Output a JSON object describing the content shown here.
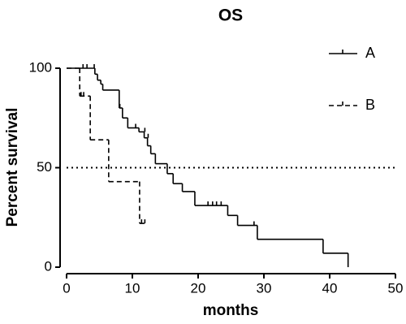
{
  "chart_data": {
    "type": "step",
    "title": "OS",
    "x_label": "months",
    "y_label": "Percent survival",
    "xlim": [
      0,
      50
    ],
    "xticks": [
      0,
      10,
      20,
      30,
      40,
      50
    ],
    "ylim": [
      0,
      100
    ],
    "yticks": [
      0,
      50,
      100
    ],
    "reference_line": 50,
    "legend": "top-right",
    "series": [
      {
        "name": "A",
        "color": "#000000",
        "line_style": "solid",
        "x": [
          0,
          4.3,
          4.7,
          5.2,
          5.5,
          8.0,
          8.5,
          9.3,
          11.0,
          11.8,
          12.3,
          12.8,
          13.5,
          15.3,
          16.2,
          17.6,
          19.5,
          24.5,
          26.0,
          29.0,
          39.0,
          42.8
        ],
        "values": [
          100,
          97,
          94,
          92,
          89,
          80,
          75,
          70,
          68,
          65,
          61,
          57,
          52,
          47,
          42,
          38,
          31,
          26,
          21,
          14,
          7,
          0
        ],
        "censored_x": [
          2.5,
          3.1,
          4.2,
          8.1,
          10.5,
          11.9,
          12.4,
          21.5,
          22.2,
          22.8,
          23.5,
          28.5
        ],
        "censored_values": [
          100,
          100,
          100,
          80,
          70,
          68,
          65,
          31,
          31,
          31,
          31,
          21
        ]
      },
      {
        "name": "B",
        "color": "#000000",
        "line_style": "dashed",
        "x": [
          0,
          2.0,
          3.6,
          6.4,
          11.1
        ],
        "values": [
          100,
          86,
          64,
          43,
          22
        ],
        "censored_x": [
          2.2,
          2.6,
          11.4,
          11.9
        ],
        "censored_values": [
          86,
          86,
          22,
          22
        ]
      }
    ]
  }
}
